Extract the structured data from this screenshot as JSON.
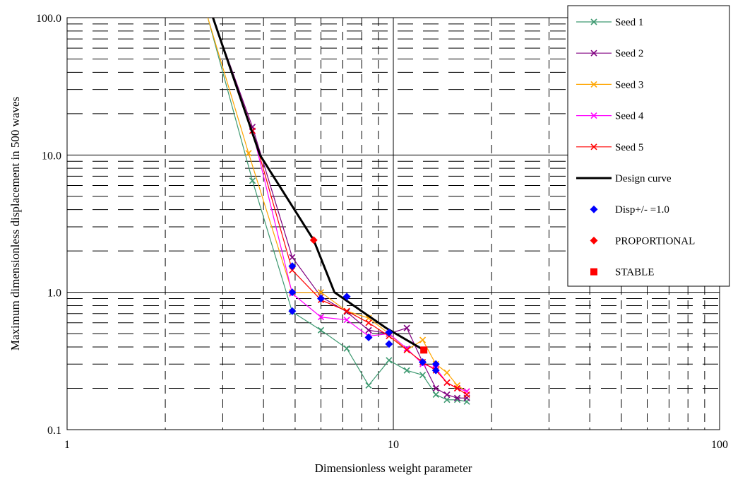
{
  "chart_data": {
    "type": "line",
    "xlabel": "Dimensionless weight parameter",
    "ylabel": "Maximum dimensionless displacement in 500 waves",
    "xscale": "log",
    "yscale": "log",
    "xlim": [
      1,
      100
    ],
    "ylim": [
      0.1,
      100
    ],
    "xticks": [
      1,
      10,
      100
    ],
    "xtick_labels": [
      "1",
      "10",
      "100"
    ],
    "yticks": [
      0.1,
      1,
      10,
      100
    ],
    "ytick_labels": [
      "0.1",
      "1.0",
      "10.0",
      "100.0"
    ],
    "grid": "major and minor, dashed minor",
    "legend_position": "top-right",
    "series": [
      {
        "name": "Seed 1",
        "color": "#3d9970",
        "marker": "x",
        "x": [
          2.7,
          3.7,
          4.9,
          6.0,
          7.2,
          8.4,
          9.7,
          11.0,
          12.3,
          13.5,
          14.6,
          15.7,
          16.8
        ],
        "y": [
          100,
          6.5,
          0.72,
          0.53,
          0.39,
          0.21,
          0.32,
          0.27,
          0.25,
          0.18,
          0.165,
          0.165,
          0.16
        ]
      },
      {
        "name": "Seed 2",
        "color": "#800080",
        "marker": "x",
        "x": [
          2.8,
          3.7,
          4.9,
          6.0,
          7.2,
          8.4,
          9.7,
          11.0,
          12.3,
          13.5,
          14.6,
          15.7,
          16.8
        ],
        "y": [
          100,
          16,
          1.8,
          0.93,
          0.72,
          0.53,
          0.5,
          0.55,
          0.31,
          0.2,
          0.18,
          0.17,
          0.17
        ]
      },
      {
        "name": "Seed 3",
        "color": "#ffa500",
        "marker": "x",
        "x": [
          2.7,
          3.6,
          4.9,
          6.0,
          7.2,
          8.4,
          9.7,
          11.0,
          12.3,
          13.5,
          14.6,
          15.7,
          16.8
        ],
        "y": [
          100,
          10.3,
          1.0,
          1.0,
          0.73,
          0.65,
          0.5,
          0.38,
          0.45,
          0.3,
          0.26,
          0.21,
          0.19
        ]
      },
      {
        "name": "Seed 4",
        "color": "#ff00ff",
        "marker": "x",
        "x": [
          2.8,
          3.7,
          4.9,
          6.0,
          7.2,
          8.4,
          9.7,
          11.0,
          12.3,
          13.5,
          14.6,
          15.7,
          16.8
        ],
        "y": [
          100,
          15,
          0.98,
          0.66,
          0.63,
          0.48,
          0.5,
          0.39,
          0.3,
          0.28,
          0.22,
          0.2,
          0.19
        ]
      },
      {
        "name": "Seed 5",
        "color": "#ff0000",
        "marker": "x",
        "x": [
          2.8,
          3.7,
          4.9,
          6.0,
          7.2,
          8.4,
          9.7,
          11.0,
          12.3,
          13.5,
          14.6,
          15.7,
          16.8
        ],
        "y": [
          100,
          15,
          1.45,
          0.88,
          0.73,
          0.6,
          0.48,
          0.38,
          0.31,
          0.27,
          0.22,
          0.2,
          0.18
        ]
      },
      {
        "name": "Design curve",
        "color": "#000000",
        "marker": "none",
        "x": [
          2.8,
          3.9,
          5.7,
          6.6,
          9.5,
          12.4
        ],
        "y": [
          100,
          10,
          2.4,
          1.0,
          0.55,
          0.38
        ]
      },
      {
        "name": "Disp+/- =1.0",
        "color": "#0000ff",
        "marker": "diamond",
        "x": [
          4.9,
          4.9,
          4.9,
          6.0,
          7.2,
          8.4,
          9.7,
          9.7,
          12.3,
          13.5,
          13.5
        ],
        "y": [
          0.73,
          1.0,
          1.55,
          0.9,
          0.93,
          0.47,
          0.42,
          0.51,
          0.31,
          0.27,
          0.3
        ]
      },
      {
        "name": "PROPORTIONAL",
        "color": "#ff0000",
        "marker": "diamond",
        "x": [
          5.7
        ],
        "y": [
          2.4
        ]
      },
      {
        "name": "STABLE",
        "color": "#ff0000",
        "marker": "square",
        "x": [
          12.4
        ],
        "y": [
          0.38
        ]
      }
    ]
  }
}
